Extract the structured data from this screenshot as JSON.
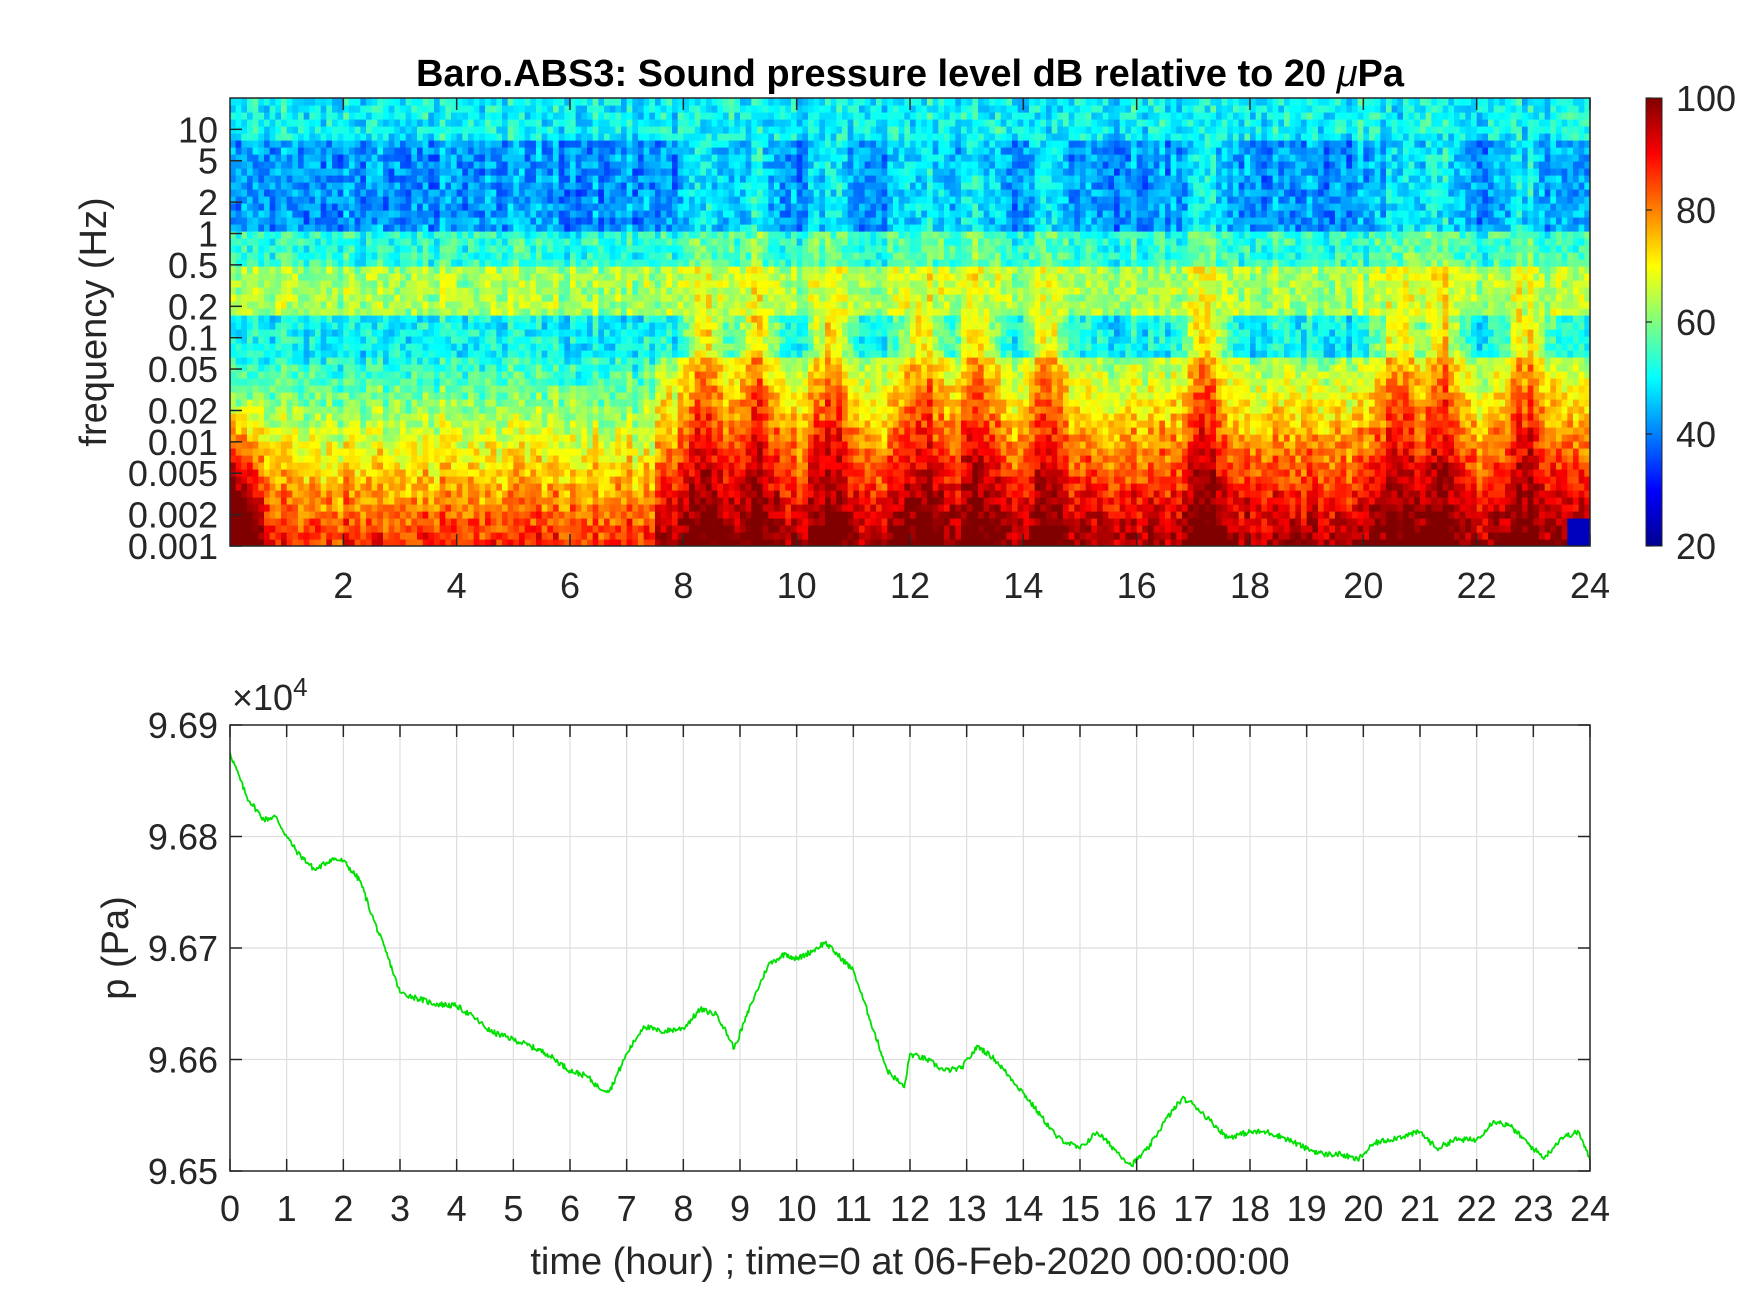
{
  "chart_data": [
    {
      "type": "heatmap",
      "title": "Baro.ABS3: Sound pressure level dB relative to 20 μPa",
      "title_prefix": "Baro.ABS3: Sound pressure level dB relative to 20 ",
      "title_mu": "μ",
      "title_suffix": "Pa",
      "xlabel": "",
      "ylabel": "frequency (Hz)",
      "xlim": [
        0,
        24
      ],
      "ylim": [
        0.001,
        20
      ],
      "y_scale": "log",
      "x_ticks": [
        "2",
        "4",
        "6",
        "8",
        "10",
        "12",
        "14",
        "16",
        "18",
        "20",
        "22",
        "24"
      ],
      "x_tick_values": [
        2,
        4,
        6,
        8,
        10,
        12,
        14,
        16,
        18,
        20,
        22,
        24
      ],
      "y_ticks": [
        "10",
        "5",
        "2",
        "1",
        "0.5",
        "0.2",
        "0.1",
        "0.05",
        "0.02",
        "0.01",
        "0.005",
        "0.002",
        "0.001"
      ],
      "y_tick_values": [
        10,
        5,
        2,
        1,
        0.5,
        0.2,
        0.1,
        0.05,
        0.02,
        0.01,
        0.005,
        0.002,
        0.001
      ],
      "colorbar": {
        "range": [
          20,
          100
        ],
        "ticks": [
          "100",
          "80",
          "60",
          "40",
          "20"
        ],
        "tick_values": [
          100,
          80,
          60,
          40,
          20
        ],
        "colormap": "jet"
      },
      "active_hours": [
        8.4,
        9.3,
        10.6,
        12.2,
        13.2,
        14.4,
        17.2,
        20.6,
        21.4,
        22.9
      ],
      "grid": false
    },
    {
      "type": "line",
      "xlabel": "time (hour) ; time=0 at 06-Feb-2020 00:00:00",
      "ylabel": "p (Pa)",
      "xlim": [
        0,
        24
      ],
      "ylim": [
        96500,
        96900
      ],
      "y_exponent_base": "×10",
      "y_exponent_power": "4",
      "x_ticks": [
        "0",
        "1",
        "2",
        "3",
        "4",
        "5",
        "6",
        "7",
        "8",
        "9",
        "10",
        "11",
        "12",
        "13",
        "14",
        "15",
        "16",
        "17",
        "18",
        "19",
        "20",
        "21",
        "22",
        "23",
        "24"
      ],
      "y_ticks": [
        "9.69",
        "9.68",
        "9.67",
        "9.66",
        "9.65"
      ],
      "y_tick_values": [
        96900,
        96800,
        96700,
        96600,
        96500
      ],
      "grid": true,
      "series": [
        {
          "color": "#00e000",
          "x": [
            0,
            0.3,
            0.6,
            0.8,
            1.0,
            1.2,
            1.5,
            1.8,
            2.0,
            2.3,
            2.5,
            2.8,
            3.0,
            3.3,
            3.6,
            4.0,
            4.3,
            4.6,
            5.0,
            5.3,
            5.6,
            6.0,
            6.3,
            6.5,
            6.7,
            7.0,
            7.3,
            7.6,
            8.0,
            8.3,
            8.6,
            8.9,
            9.2,
            9.5,
            9.8,
            10.0,
            10.3,
            10.5,
            10.8,
            11.0,
            11.3,
            11.6,
            11.9,
            12.0,
            12.3,
            12.6,
            12.9,
            13.2,
            13.5,
            13.8,
            14.0,
            14.3,
            14.6,
            15.0,
            15.3,
            15.6,
            15.9,
            16.2,
            16.5,
            16.8,
            17.0,
            17.3,
            17.6,
            18.0,
            18.3,
            18.6,
            19.0,
            19.3,
            19.6,
            19.9,
            20.2,
            20.6,
            21.0,
            21.3,
            21.6,
            22.0,
            22.3,
            22.6,
            23.0,
            23.2,
            23.5,
            23.8,
            24.0
          ],
          "y": [
            96875,
            96835,
            96815,
            96818,
            96800,
            96785,
            96770,
            96780,
            96778,
            96760,
            96730,
            96690,
            96660,
            96655,
            96650,
            96648,
            96638,
            96625,
            96618,
            96612,
            96605,
            96590,
            96585,
            96575,
            96572,
            96605,
            96630,
            96625,
            96628,
            96645,
            96640,
            96610,
            96650,
            96685,
            96695,
            96690,
            96698,
            96705,
            96690,
            96680,
            96635,
            96590,
            96575,
            96605,
            96600,
            96590,
            96592,
            96612,
            96600,
            96582,
            96570,
            96550,
            96530,
            96520,
            96535,
            96520,
            96505,
            96520,
            96545,
            96565,
            96560,
            96545,
            96530,
            96535,
            96535,
            96530,
            96520,
            96515,
            96515,
            96510,
            96525,
            96530,
            96535,
            96520,
            96528,
            96528,
            96545,
            96540,
            96520,
            96512,
            96530,
            96535,
            96510
          ]
        }
      ]
    }
  ]
}
